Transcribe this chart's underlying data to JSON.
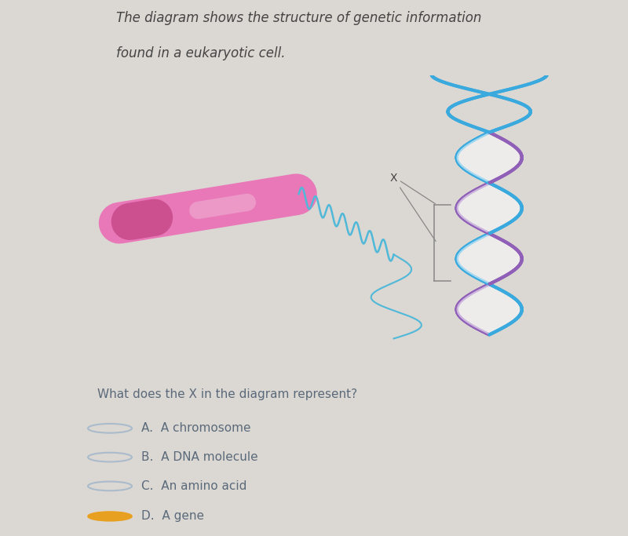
{
  "bg_color": "#cce5ef",
  "page_bg": "#dbd7d2",
  "title_line1": "The diagram shows the structure of genetic information",
  "title_line2": "found in a eukaryotic cell.",
  "question": "What does the X in the diagram represent?",
  "options": [
    {
      "label": "A.",
      "text": "A chromosome",
      "selected": false
    },
    {
      "label": "B.",
      "text": "A DNA molecule",
      "selected": false
    },
    {
      "label": "C.",
      "text": "An amino acid",
      "selected": false
    },
    {
      "label": "D.",
      "text": "A gene",
      "selected": true
    }
  ],
  "chromosome_color": "#e878b8",
  "chromosome_dark": "#cc5090",
  "helix_blue": "#3aaade",
  "helix_purple": "#9060b8",
  "coil_color": "#50b8d8",
  "label_x_color": "#444444",
  "bracket_color": "#888888",
  "option_circle_color": "#aabbcc",
  "selected_circle_color": "#e8a020",
  "text_color": "#5a6a7a",
  "title_color": "#444444"
}
